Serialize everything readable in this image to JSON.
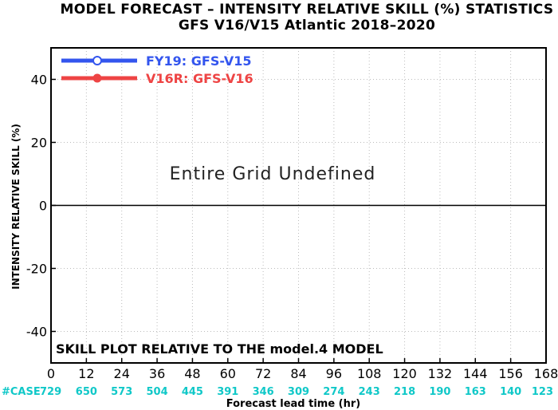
{
  "chart_data": {
    "type": "line",
    "title": "MODEL FORECAST – INTENSITY RELATIVE SKILL (%) STATISTICS",
    "subtitle": "GFS V16/V15 Atlantic 2018–2020",
    "xlabel": "Forecast lead time (hr)",
    "ylabel": "INTENSITY RELATIVE SKILL (%)",
    "xlim": [
      0,
      168
    ],
    "ylim": [
      -50,
      50
    ],
    "x_ticks": [
      0,
      12,
      24,
      36,
      48,
      60,
      72,
      84,
      96,
      108,
      120,
      132,
      144,
      156,
      168
    ],
    "y_ticks": [
      -40,
      -20,
      0,
      20,
      40
    ],
    "y_tick_labels": [
      "-40",
      "-20",
      "0",
      "20",
      "40"
    ],
    "grid": true,
    "zero_line": 0,
    "legend_position": "top-left",
    "series": [
      {
        "name": "FY19: GFS-V15",
        "color": "#3355ee",
        "values": []
      },
      {
        "name": "V16R: GFS-V16",
        "color": "#ee4444",
        "values": []
      }
    ],
    "case_prefix": "#CASE",
    "case_x": [
      0,
      12,
      24,
      36,
      48,
      60,
      72,
      84,
      96,
      108,
      120,
      132,
      144,
      156,
      168
    ],
    "case_counts": [
      "729",
      "650",
      "573",
      "504",
      "445",
      "391",
      "346",
      "309",
      "274",
      "243",
      "218",
      "190",
      "163",
      "140",
      "123"
    ],
    "annotation": "SKILL PLOT RELATIVE TO THE model.4 MODEL",
    "message": "Entire Grid Undefined"
  }
}
